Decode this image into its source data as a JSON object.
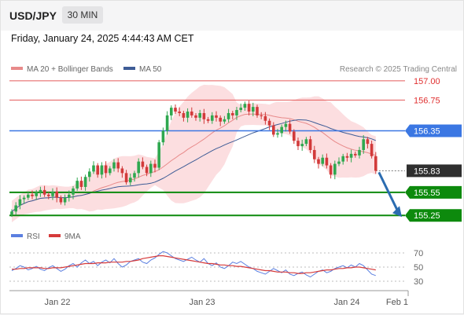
{
  "header": {
    "symbol": "USD/JPY",
    "timeframe": "30 MIN"
  },
  "timestamp": "Friday, January 24, 2025 4:44:43 AM CET",
  "legend": {
    "bollinger": "MA 20 + Bollinger Bands",
    "ma50": "MA 50",
    "research": "Research © 2025 Trading Central",
    "rsi": "RSI",
    "rsi_ma": "9MA"
  },
  "colors": {
    "bull": "#2fa84f",
    "bear": "#d23a3a",
    "band": "#fbd3d5",
    "ma20": "#e88a8a",
    "ma50": "#3e5c96",
    "resistance": "#e45a5a",
    "pivot": "#3b77e3",
    "support": "#0d8a0d",
    "current": "#2f2f2f",
    "arrow": "#2b6cb0",
    "rsi": "#5b7fe0",
    "rsi_ma": "#d63a3a"
  },
  "chart_data": {
    "type": "candlestick",
    "x_ticks": [
      "Jan 22",
      "Jan 23",
      "Jan 24",
      "Feb 1"
    ],
    "y_range": [
      155.16,
      157.07
    ],
    "levels": [
      {
        "value": 157.0,
        "label": "157.00",
        "kind": "resistance"
      },
      {
        "value": 156.75,
        "label": "156.75",
        "kind": "resistance"
      },
      {
        "value": 156.35,
        "label": "156.35",
        "kind": "pivot"
      },
      {
        "value": 155.83,
        "label": "155.83",
        "kind": "current"
      },
      {
        "value": 155.55,
        "label": "155.55",
        "kind": "support"
      },
      {
        "value": 155.25,
        "label": "155.25",
        "kind": "support"
      }
    ],
    "forecast": {
      "from": 155.83,
      "to": 155.25
    },
    "closes": [
      155.3,
      155.38,
      155.46,
      155.48,
      155.52,
      155.5,
      155.55,
      155.58,
      155.52,
      155.5,
      155.56,
      155.48,
      155.42,
      155.48,
      155.52,
      155.6,
      155.7,
      155.62,
      155.75,
      155.82,
      155.9,
      155.78,
      155.9,
      155.8,
      155.86,
      155.94,
      155.86,
      155.8,
      155.68,
      155.74,
      155.8,
      155.95,
      155.88,
      155.8,
      155.92,
      155.87,
      156.2,
      156.35,
      156.55,
      156.65,
      156.6,
      156.58,
      156.52,
      156.6,
      156.55,
      156.52,
      156.58,
      156.5,
      156.48,
      156.55,
      156.52,
      156.47,
      156.5,
      156.58,
      156.55,
      156.62,
      156.65,
      156.7,
      156.6,
      156.66,
      156.55,
      156.54,
      156.48,
      156.42,
      156.3,
      156.32,
      156.4,
      156.44,
      156.34,
      156.22,
      156.15,
      156.18,
      156.24,
      156.1,
      155.98,
      155.92,
      156.0,
      155.9,
      155.78,
      155.92,
      155.95,
      156.02,
      156.0,
      156.05,
      156.03,
      156.1,
      156.24,
      156.18,
      156.02,
      155.83
    ],
    "rsi": {
      "scale_ticks": [
        "70",
        "50",
        "30"
      ],
      "ylim": [
        20,
        80
      ],
      "rsi": [
        45,
        48,
        52,
        50,
        46,
        48,
        51,
        47,
        45,
        49,
        52,
        48,
        44,
        47,
        52,
        55,
        50,
        56,
        60,
        55,
        58,
        52,
        57,
        60,
        56,
        62,
        55,
        50,
        53,
        58,
        60,
        62,
        57,
        55,
        60,
        63,
        68,
        72,
        70,
        66,
        62,
        60,
        58,
        61,
        64,
        60,
        57,
        62,
        55,
        52,
        56,
        50,
        48,
        52,
        57,
        55,
        58,
        54,
        50,
        48,
        44,
        42,
        40,
        44,
        48,
        45,
        42,
        46,
        40,
        38,
        41,
        43,
        39,
        36,
        40,
        44,
        46,
        42,
        44,
        48,
        50,
        52,
        49,
        53,
        50,
        55,
        52,
        46,
        40,
        38
      ],
      "ma9": [
        47,
        47,
        48,
        48,
        49,
        49,
        49,
        49,
        48,
        48,
        49,
        49,
        49,
        50,
        51,
        52,
        53,
        54,
        55,
        55,
        55,
        56,
        56,
        56,
        57,
        57,
        57,
        57,
        58,
        58,
        59,
        60,
        62,
        63,
        64,
        65,
        66,
        66,
        65,
        64,
        63,
        62,
        61,
        60,
        59,
        58,
        57,
        56,
        55,
        55,
        54,
        53,
        53,
        52,
        52,
        51,
        51,
        50,
        49,
        48,
        47,
        46,
        45,
        45,
        44,
        43,
        43,
        43,
        42,
        42,
        41,
        41,
        42,
        42,
        43,
        44,
        45,
        46,
        46,
        47,
        48,
        48,
        49,
        49,
        50,
        50,
        49,
        48,
        47,
        46
      ]
    }
  }
}
